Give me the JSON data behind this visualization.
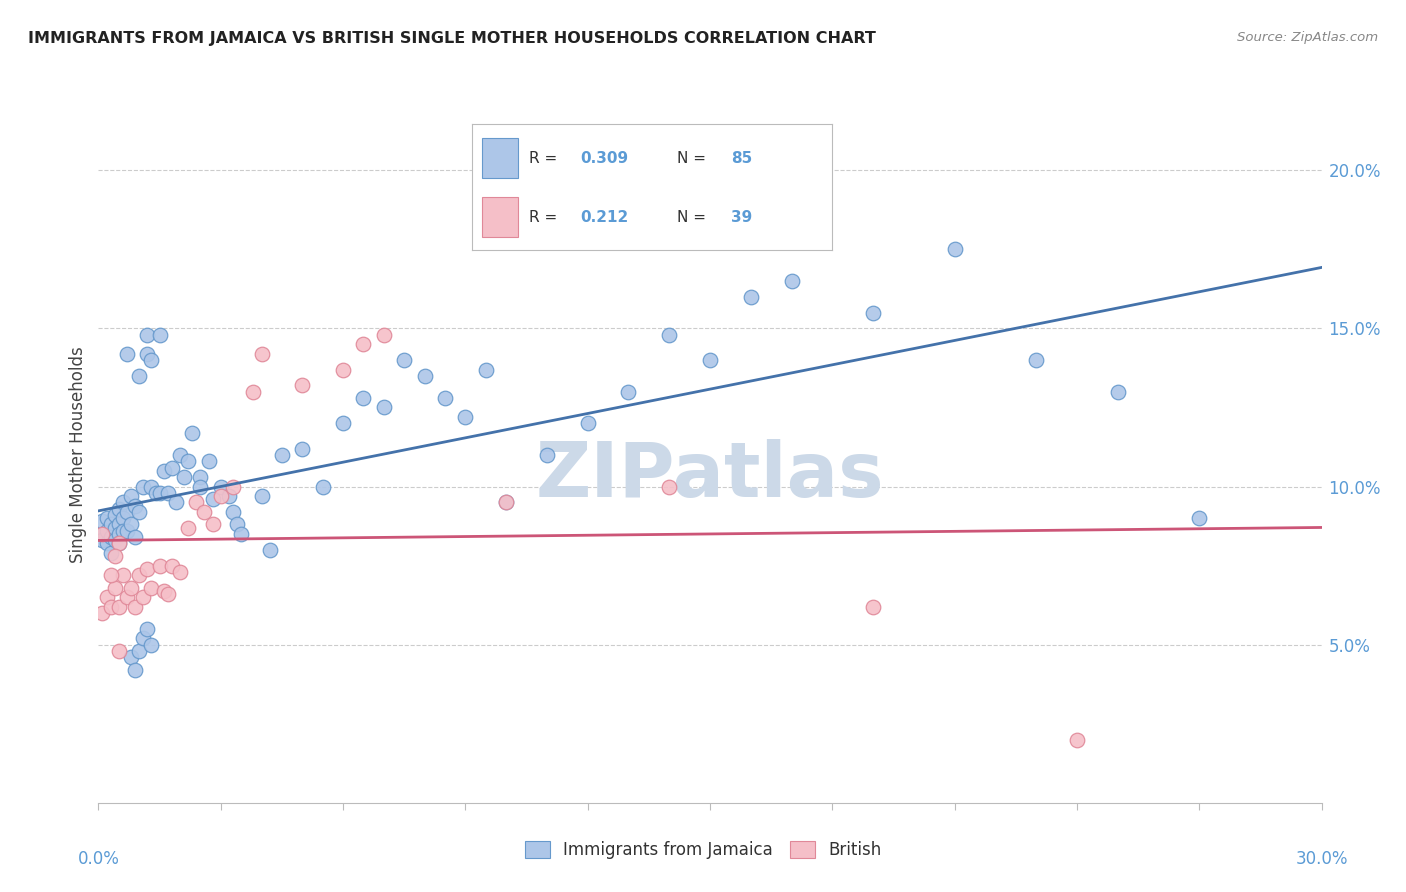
{
  "title": "IMMIGRANTS FROM JAMAICA VS BRITISH SINGLE MOTHER HOUSEHOLDS CORRELATION CHART",
  "source": "Source: ZipAtlas.com",
  "ylabel": "Single Mother Households",
  "legend_r_blue": "0.309",
  "legend_n_blue": "85",
  "legend_r_pink": "0.212",
  "legend_n_pink": "39",
  "blue_marker_color": "#adc6e8",
  "blue_edge_color": "#6699cc",
  "blue_line_color": "#4472aa",
  "pink_marker_color": "#f5bfc8",
  "pink_edge_color": "#e08898",
  "pink_line_color": "#cc5577",
  "right_axis_color": "#5b9bd5",
  "legend_val_color": "#5b9bd5",
  "grid_color": "#cccccc",
  "watermark_color": "#ccd9e8",
  "xmin": 0.0,
  "xmax": 0.3,
  "ymin": 0.0,
  "ymax": 0.22,
  "yticks": [
    0.05,
    0.1,
    0.15,
    0.2
  ],
  "ytick_labels": [
    "5.0%",
    "10.0%",
    "15.0%",
    "20.0%"
  ],
  "blue_x": [
    0.001,
    0.001,
    0.001,
    0.002,
    0.002,
    0.002,
    0.003,
    0.003,
    0.003,
    0.004,
    0.004,
    0.004,
    0.005,
    0.005,
    0.005,
    0.005,
    0.006,
    0.006,
    0.006,
    0.007,
    0.007,
    0.007,
    0.008,
    0.008,
    0.009,
    0.009,
    0.01,
    0.01,
    0.011,
    0.012,
    0.012,
    0.013,
    0.013,
    0.014,
    0.015,
    0.015,
    0.016,
    0.017,
    0.018,
    0.019,
    0.02,
    0.021,
    0.022,
    0.023,
    0.025,
    0.025,
    0.027,
    0.028,
    0.03,
    0.032,
    0.033,
    0.034,
    0.035,
    0.04,
    0.042,
    0.045,
    0.05,
    0.055,
    0.06,
    0.065,
    0.07,
    0.075,
    0.08,
    0.085,
    0.09,
    0.095,
    0.1,
    0.11,
    0.12,
    0.13,
    0.14,
    0.15,
    0.16,
    0.17,
    0.19,
    0.21,
    0.23,
    0.25,
    0.27,
    0.008,
    0.009,
    0.01,
    0.011,
    0.012,
    0.013
  ],
  "blue_y": [
    0.085,
    0.089,
    0.083,
    0.086,
    0.09,
    0.082,
    0.088,
    0.084,
    0.079,
    0.091,
    0.087,
    0.083,
    0.093,
    0.088,
    0.085,
    0.082,
    0.095,
    0.09,
    0.086,
    0.092,
    0.142,
    0.086,
    0.097,
    0.088,
    0.094,
    0.084,
    0.135,
    0.092,
    0.1,
    0.148,
    0.142,
    0.1,
    0.14,
    0.098,
    0.148,
    0.098,
    0.105,
    0.098,
    0.106,
    0.095,
    0.11,
    0.103,
    0.108,
    0.117,
    0.103,
    0.1,
    0.108,
    0.096,
    0.1,
    0.097,
    0.092,
    0.088,
    0.085,
    0.097,
    0.08,
    0.11,
    0.112,
    0.1,
    0.12,
    0.128,
    0.125,
    0.14,
    0.135,
    0.128,
    0.122,
    0.137,
    0.095,
    0.11,
    0.12,
    0.13,
    0.148,
    0.14,
    0.16,
    0.165,
    0.155,
    0.175,
    0.14,
    0.13,
    0.09,
    0.046,
    0.042,
    0.048,
    0.052,
    0.055,
    0.05
  ],
  "pink_x": [
    0.001,
    0.001,
    0.002,
    0.003,
    0.004,
    0.005,
    0.005,
    0.006,
    0.007,
    0.008,
    0.009,
    0.01,
    0.011,
    0.012,
    0.013,
    0.015,
    0.016,
    0.017,
    0.018,
    0.02,
    0.022,
    0.024,
    0.026,
    0.028,
    0.03,
    0.033,
    0.038,
    0.04,
    0.05,
    0.06,
    0.065,
    0.07,
    0.1,
    0.14,
    0.19,
    0.24,
    0.003,
    0.004,
    0.005
  ],
  "pink_y": [
    0.085,
    0.06,
    0.065,
    0.062,
    0.068,
    0.082,
    0.062,
    0.072,
    0.065,
    0.068,
    0.062,
    0.072,
    0.065,
    0.074,
    0.068,
    0.075,
    0.067,
    0.066,
    0.075,
    0.073,
    0.087,
    0.095,
    0.092,
    0.088,
    0.097,
    0.1,
    0.13,
    0.142,
    0.132,
    0.137,
    0.145,
    0.148,
    0.095,
    0.1,
    0.062,
    0.02,
    0.072,
    0.078,
    0.048
  ],
  "watermark": "ZIPatlas"
}
